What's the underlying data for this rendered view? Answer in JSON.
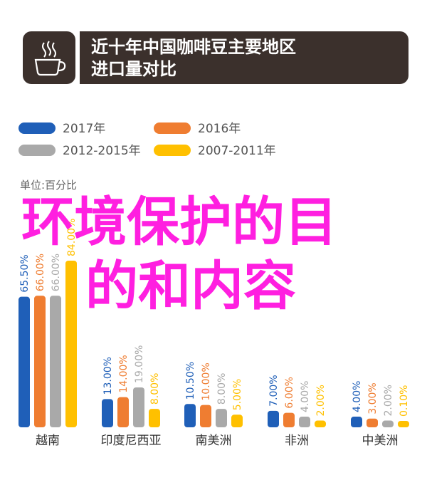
{
  "header": {
    "title_line1": "近十年中国咖啡豆主要地区",
    "title_line2": "进口量对比",
    "logo_icon": "coffee-cup-icon"
  },
  "overlay": {
    "line1": "环境保护的目",
    "line2": "的和内容",
    "color": "#ff1fe0"
  },
  "chart_data": {
    "type": "bar",
    "unit_label": "单位:百分比",
    "categories": [
      "越南",
      "印度尼西亚",
      "南美洲",
      "非洲",
      "中美洲"
    ],
    "ylim": [
      0,
      84
    ],
    "legend_position": "top",
    "series": [
      {
        "name": "2017年",
        "color": "#1f5fb8",
        "values": [
          65.5,
          13.0,
          10.5,
          7.0,
          4.0
        ],
        "labels": [
          "65.50%",
          "13.00%",
          "10.50%",
          "7.00%",
          "4.00%"
        ]
      },
      {
        "name": "2016年",
        "color": "#ef7d31",
        "values": [
          66.0,
          14.0,
          10.0,
          6.0,
          3.0
        ],
        "labels": [
          "66.00%",
          "14.00%",
          "10.00%",
          "6.00%",
          "3.00%"
        ]
      },
      {
        "name": "2012-2015年",
        "color": "#a9a9a9",
        "values": [
          66.0,
          19.0,
          8.0,
          4.0,
          2.0
        ],
        "labels": [
          "66.00%",
          "19.00%",
          "8.00%",
          "4.00%",
          "2.00%"
        ]
      },
      {
        "name": "2007-2011年",
        "color": "#ffc000",
        "values": [
          84.0,
          8.0,
          5.0,
          2.0,
          0.1
        ],
        "labels": [
          "84.00%",
          "8.00%",
          "5.00%",
          "2.00%",
          "0.10%"
        ]
      }
    ]
  }
}
